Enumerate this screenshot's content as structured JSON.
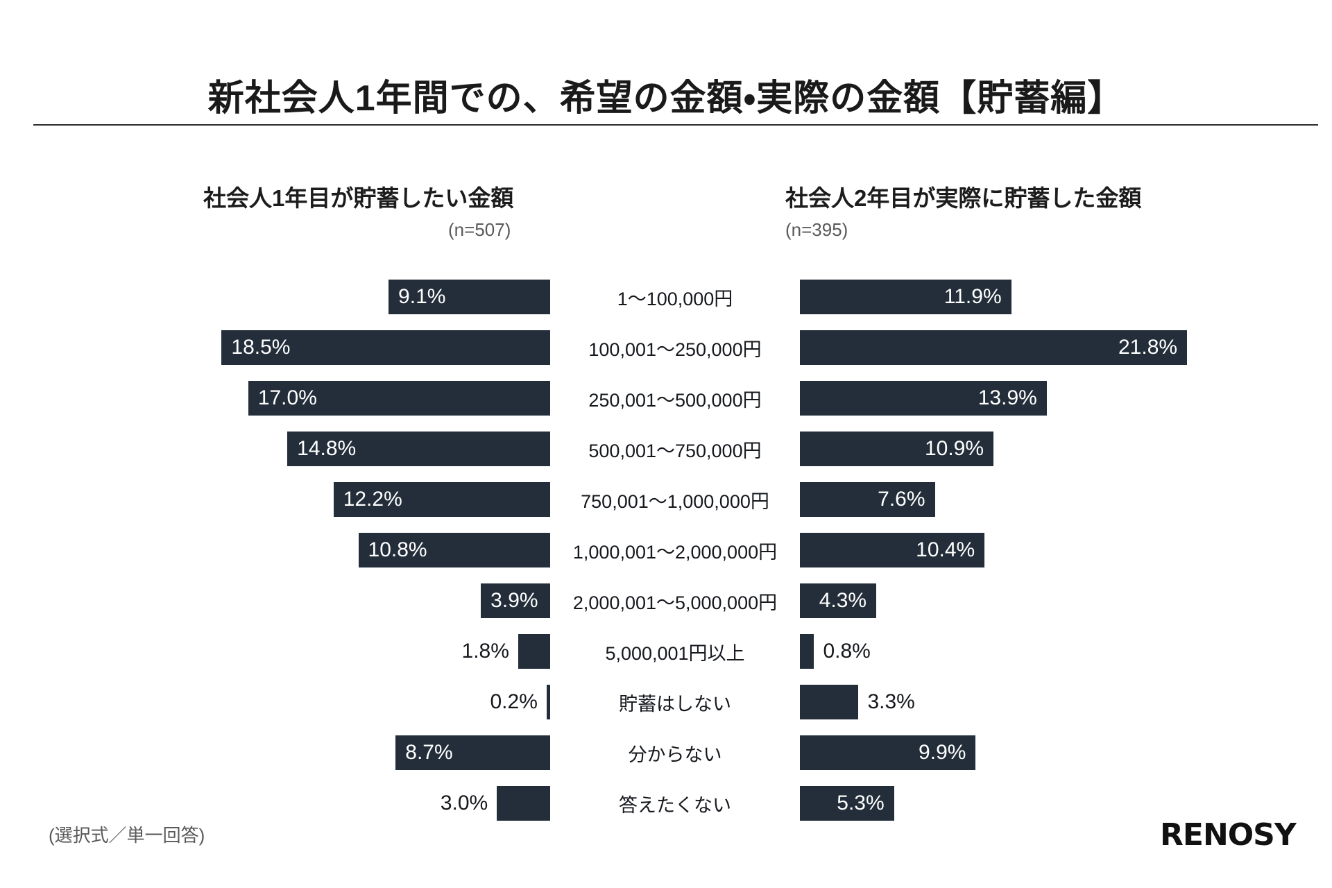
{
  "title": "新社会人1年間での、希望の金額・実際の金額【貯蓄編】",
  "panels": {
    "left": {
      "subtitle": "社会人1年目が貯蓄したい金額",
      "sample_size": "(n=507)"
    },
    "right": {
      "subtitle": "社会人2年目が実際に貯蓄した金額",
      "sample_size": "(n=395)"
    }
  },
  "footer": {
    "note": "(選択式／単一回答)",
    "logo": "RENOSY"
  },
  "chart_data": {
    "type": "bar",
    "orientation": "horizontal-butterfly",
    "unit": "%",
    "bar_color": "#232e3a",
    "value_label_inside_threshold": 3.5,
    "xlim": [
      0,
      22
    ],
    "categories": [
      "1〜100,000円",
      "100,001〜250,000円",
      "250,001〜500,000円",
      "500,001〜750,000円",
      "750,001〜1,000,000円",
      "1,000,001〜2,000,000円",
      "2,000,001〜5,000,000円",
      "5,000,001円以上",
      "貯蓄はしない",
      "分からない",
      "答えたくない"
    ],
    "series": [
      {
        "name": "社会人1年目が貯蓄したい金額",
        "n": 507,
        "side": "left",
        "values": [
          9.1,
          18.5,
          17.0,
          14.8,
          12.2,
          10.8,
          3.9,
          1.8,
          0.2,
          8.7,
          3.0
        ]
      },
      {
        "name": "社会人2年目が実際に貯蓄した金額",
        "n": 395,
        "side": "right",
        "values": [
          11.9,
          21.8,
          13.9,
          10.9,
          7.6,
          10.4,
          4.3,
          0.8,
          3.3,
          9.9,
          5.3
        ]
      }
    ]
  }
}
